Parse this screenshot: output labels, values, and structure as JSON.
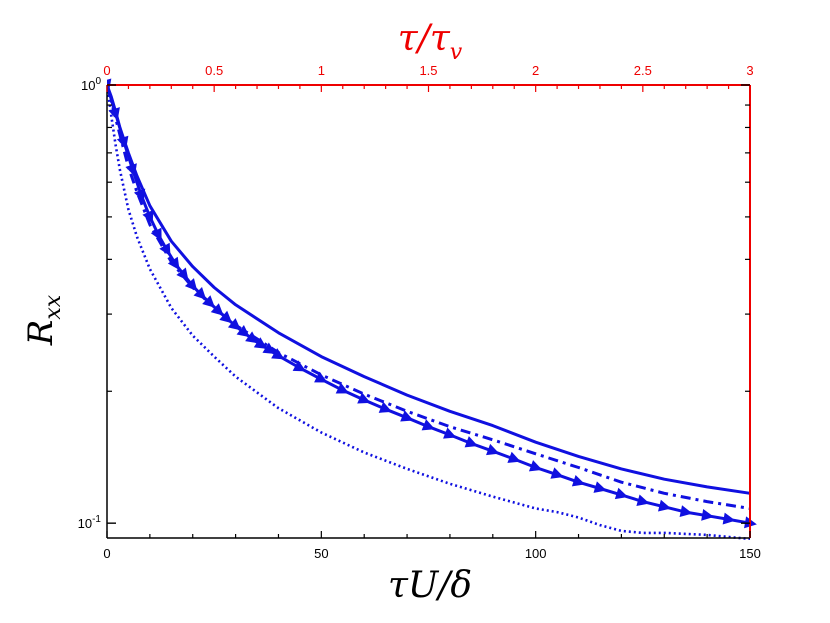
{
  "chart_data": {
    "type": "line",
    "xlabel": "τU/δ",
    "ylabel": "R",
    "ylabel_sub": "xx",
    "x2label": "τ/τ",
    "x2label_sub": "v",
    "xlim": [
      0,
      150
    ],
    "ylim": [
      0.0925,
      1.0
    ],
    "yscale": "log",
    "x2lim": [
      0,
      3
    ],
    "x_ticks": [
      "0",
      "50",
      "100",
      "150"
    ],
    "x2_ticks": [
      "0",
      "0.5",
      "1",
      "1.5",
      "2",
      "2.5",
      "3"
    ],
    "y_ticks": [
      {
        "base": "10",
        "exp": "0",
        "value": 1.0
      },
      {
        "base": "10",
        "exp": "-1",
        "value": 0.1
      }
    ],
    "grid": false,
    "legend": "none",
    "colors": {
      "series": "#1010e0",
      "top_axis": "#ee0000"
    },
    "series": [
      {
        "style": "solid",
        "x": [
          0,
          1,
          2,
          3,
          5,
          7,
          10,
          15,
          20,
          25,
          30,
          40,
          50,
          60,
          70,
          80,
          90,
          100,
          110,
          120,
          130,
          140,
          150
        ],
        "y": [
          1.0,
          0.94,
          0.87,
          0.8,
          0.7,
          0.62,
          0.53,
          0.44,
          0.385,
          0.345,
          0.315,
          0.272,
          0.24,
          0.216,
          0.196,
          0.18,
          0.167,
          0.153,
          0.142,
          0.133,
          0.126,
          0.121,
          0.117
        ]
      },
      {
        "style": "dashdot",
        "x": [
          0,
          1,
          2,
          3,
          5,
          7,
          10,
          15,
          20,
          25,
          30,
          40,
          50,
          60,
          70,
          80,
          90,
          100,
          110,
          120,
          130,
          140,
          150
        ],
        "y": [
          1.0,
          0.92,
          0.84,
          0.77,
          0.65,
          0.57,
          0.48,
          0.395,
          0.345,
          0.31,
          0.283,
          0.245,
          0.218,
          0.197,
          0.18,
          0.166,
          0.155,
          0.144,
          0.134,
          0.124,
          0.117,
          0.112,
          0.108
        ]
      },
      {
        "style": "triangles",
        "x": [
          0,
          2,
          4,
          6,
          8,
          10,
          12,
          14,
          16,
          18,
          20,
          22,
          24,
          26,
          28,
          30,
          32,
          34,
          36,
          38,
          40,
          45,
          50,
          55,
          60,
          65,
          70,
          75,
          80,
          85,
          90,
          95,
          100,
          105,
          110,
          115,
          120,
          125,
          130,
          135,
          140,
          145,
          150
        ],
        "y": [
          1.0,
          0.86,
          0.74,
          0.64,
          0.56,
          0.5,
          0.455,
          0.42,
          0.39,
          0.368,
          0.348,
          0.332,
          0.318,
          0.305,
          0.293,
          0.282,
          0.272,
          0.263,
          0.255,
          0.248,
          0.241,
          0.226,
          0.213,
          0.201,
          0.191,
          0.182,
          0.174,
          0.166,
          0.159,
          0.152,
          0.146,
          0.14,
          0.134,
          0.129,
          0.124,
          0.12,
          0.116,
          0.112,
          0.109,
          0.106,
          0.104,
          0.102,
          0.1
        ]
      },
      {
        "style": "dotted",
        "x": [
          0,
          1,
          2,
          3,
          5,
          7,
          10,
          15,
          20,
          25,
          30,
          40,
          50,
          60,
          70,
          80,
          90,
          100,
          105,
          110,
          115,
          120,
          125,
          130,
          140,
          150
        ],
        "y": [
          1.0,
          0.85,
          0.73,
          0.64,
          0.52,
          0.45,
          0.38,
          0.31,
          0.268,
          0.24,
          0.216,
          0.183,
          0.161,
          0.145,
          0.133,
          0.123,
          0.115,
          0.108,
          0.106,
          0.103,
          0.099,
          0.096,
          0.095,
          0.095,
          0.094,
          0.092
        ]
      }
    ]
  }
}
